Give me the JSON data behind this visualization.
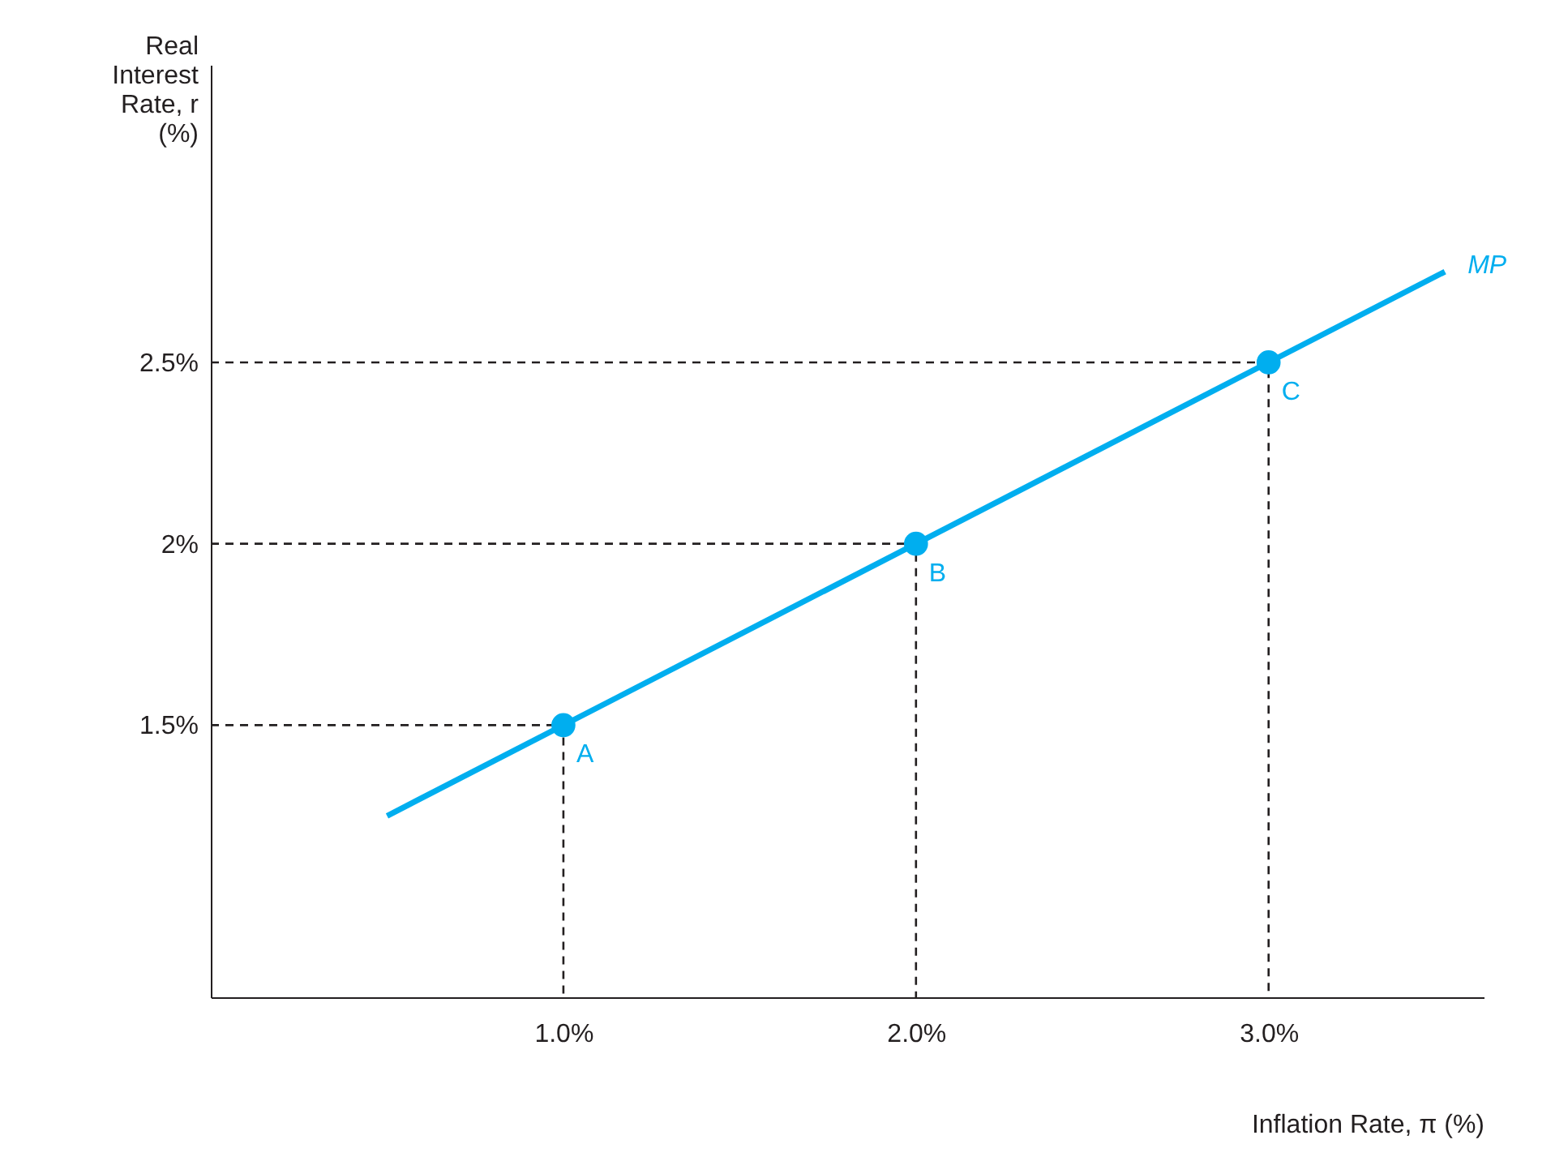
{
  "chart_data": {
    "type": "line",
    "xlabel": "Inflation Rate, π (%)",
    "ylabel": "Real Interest Rate, r (%)",
    "xlim": [
      0,
      3.61
    ],
    "ylim": [
      0.75,
      3.32
    ],
    "xticks": [
      {
        "value": 1,
        "label": "1.0%"
      },
      {
        "value": 2,
        "label": "2.0%"
      },
      {
        "value": 3,
        "label": "3.0%"
      }
    ],
    "yticks": [
      {
        "value": 1.5,
        "label": "1.5%"
      },
      {
        "value": 2,
        "label": "2%"
      },
      {
        "value": 2.5,
        "label": "2.5%"
      }
    ],
    "grid": false,
    "series": [
      {
        "line_style": "dashed",
        "color": "#231f20",
        "x": [
          0,
          1,
          1
        ],
        "values": [
          1.5,
          1.5,
          0.75
        ]
      },
      {
        "line_style": "dashed",
        "color": "#231f20",
        "x": [
          0,
          2,
          2
        ],
        "values": [
          2,
          2,
          0.75
        ]
      },
      {
        "line_style": "dashed",
        "color": "#231f20",
        "x": [
          0,
          3,
          3
        ],
        "values": [
          2.5,
          2.5,
          0.75
        ]
      },
      {
        "name": "MP",
        "line_style": "solid",
        "color": "#00aeef",
        "x": [
          0.5,
          3.5
        ],
        "values": [
          1.25,
          2.75
        ]
      },
      {
        "type": "scatter",
        "marker": "circle",
        "color": "#00aeef",
        "x": [
          1,
          2,
          3
        ],
        "values": [
          1.5,
          2,
          2.5
        ]
      }
    ],
    "annotations": [
      {
        "text": "A",
        "x": 1,
        "y": 1.5
      },
      {
        "text": "B",
        "x": 2,
        "y": 2
      },
      {
        "text": "C",
        "x": 3,
        "y": 2.5
      }
    ]
  }
}
